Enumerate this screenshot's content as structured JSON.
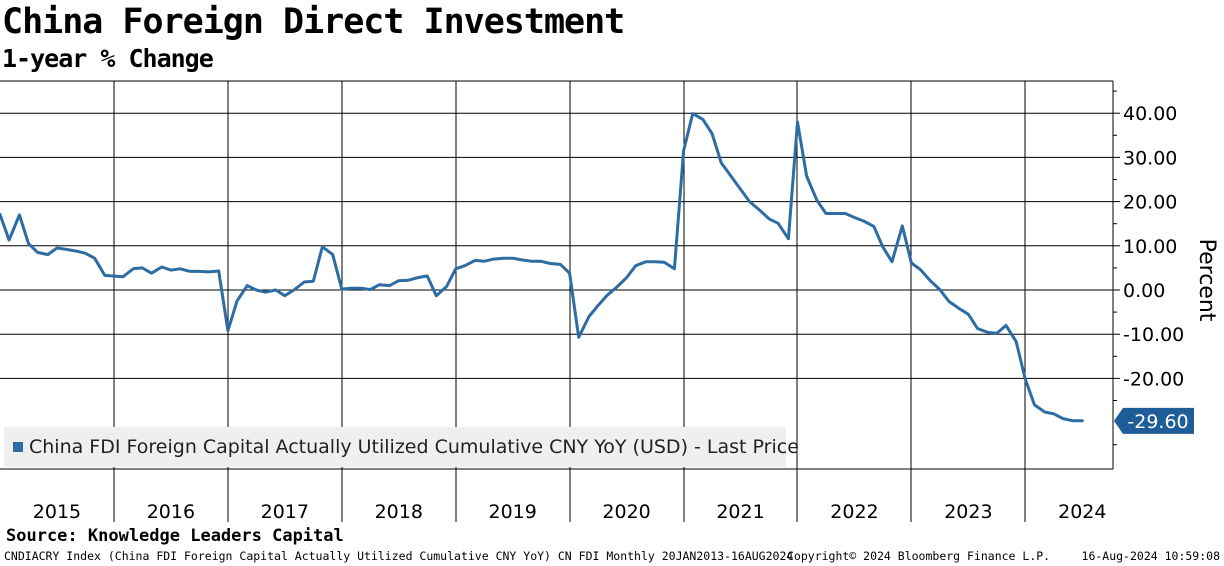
{
  "header": {
    "title": "China Foreign Direct Investment",
    "subtitle": "1-year % Change"
  },
  "footer": {
    "source": "Source: Knowledge Leaders Capital",
    "ticker_info": "CNDIACRY Index (China FDI Foreign Capital Actually Utilized Cumulative CNY YoY) CN FDI  Monthly 20JAN2013-16AUG2024",
    "copyright": "Copyright© 2024 Bloomberg Finance L.P.",
    "timestamp": "16-Aug-2024 10:59:08"
  },
  "colors": {
    "line": "#2e6ca4",
    "grid": "#000000",
    "badge_bg": "#1f5d99",
    "badge_text": "#ffffff"
  },
  "chart_data": {
    "type": "line",
    "title": "China Foreign Direct Investment",
    "subtitle": "1-year % Change",
    "ylabel": "Percent",
    "xlabel": "",
    "ylim": [
      -40,
      50
    ],
    "yticks": [
      40,
      30,
      20,
      10,
      0,
      -10,
      -20
    ],
    "ytick_labels": [
      "40.00",
      "30.00",
      "20.00",
      "10.00",
      "0.00",
      "-10.00",
      "-20.00"
    ],
    "year_labels": [
      "2015",
      "2016",
      "2017",
      "2018",
      "2019",
      "2020",
      "2021",
      "2022",
      "2023",
      "2024"
    ],
    "year_centers": [
      2015.5,
      2016.5,
      2017.5,
      2018.5,
      2019.5,
      2020.5,
      2021.5,
      2022.5,
      2023.5,
      2024.5
    ],
    "year_boundaries": [
      2016,
      2017,
      2018,
      2019,
      2020,
      2021,
      2022,
      2023,
      2024
    ],
    "x_range": [
      2015.0,
      2024.55
    ],
    "grid": true,
    "legend_position": "bottom-left",
    "last_value": -29.6,
    "last_value_label": "-29.60",
    "series": [
      {
        "name": "China FDI Foreign Capital Actually Utilized Cumulative CNY YoY (USD) - Last Price",
        "x": [
          2015.0,
          2015.08,
          2015.17,
          2015.25,
          2015.33,
          2015.42,
          2015.5,
          2015.58,
          2015.67,
          2015.75,
          2015.83,
          2015.92,
          2016.08,
          2016.17,
          2016.25,
          2016.33,
          2016.42,
          2016.5,
          2016.58,
          2016.67,
          2016.75,
          2016.83,
          2016.92,
          2017.0,
          2017.08,
          2017.17,
          2017.25,
          2017.33,
          2017.42,
          2017.5,
          2017.58,
          2017.67,
          2017.75,
          2017.83,
          2017.92,
          2018.0,
          2018.08,
          2018.17,
          2018.25,
          2018.33,
          2018.42,
          2018.5,
          2018.58,
          2018.67,
          2018.75,
          2018.83,
          2018.92,
          2019.0,
          2019.08,
          2019.17,
          2019.25,
          2019.33,
          2019.42,
          2019.5,
          2019.58,
          2019.67,
          2019.75,
          2019.83,
          2019.92,
          2020.0,
          2020.08,
          2020.17,
          2020.25,
          2020.33,
          2020.42,
          2020.5,
          2020.58,
          2020.67,
          2020.75,
          2020.83,
          2020.92,
          2021.0,
          2021.08,
          2021.17,
          2021.25,
          2021.33,
          2021.42,
          2021.5,
          2021.58,
          2021.67,
          2021.75,
          2021.83,
          2021.92,
          2022.0,
          2022.08,
          2022.17,
          2022.25,
          2022.33,
          2022.42,
          2022.5,
          2022.58,
          2022.67,
          2022.75,
          2022.83,
          2022.92,
          2023.0,
          2023.08,
          2023.17,
          2023.25,
          2023.33,
          2023.42,
          2023.5,
          2023.58,
          2023.67,
          2023.75,
          2023.83,
          2023.92,
          2024.0,
          2024.08,
          2024.17,
          2024.25,
          2024.33,
          2024.42,
          2024.5
        ],
        "values": [
          17.1,
          11.3,
          17.0,
          10.5,
          8.5,
          8.0,
          9.5,
          9.2,
          8.8,
          8.3,
          7.2,
          3.3,
          3.0,
          4.8,
          5.0,
          3.8,
          5.2,
          4.5,
          4.8,
          4.2,
          4.2,
          4.1,
          4.3,
          -9.2,
          -2.5,
          1.0,
          0.0,
          -0.5,
          0.0,
          -1.3,
          0.0,
          1.8,
          2.0,
          9.8,
          8.0,
          0.2,
          0.4,
          0.4,
          0.1,
          1.2,
          1.0,
          2.1,
          2.2,
          2.8,
          3.2,
          -1.3,
          0.8,
          4.8,
          5.5,
          6.7,
          6.5,
          7.0,
          7.2,
          7.2,
          6.8,
          6.5,
          6.5,
          6.0,
          5.8,
          3.8,
          -10.7,
          -6.0,
          -3.5,
          -1.2,
          0.8,
          2.8,
          5.5,
          6.4,
          6.4,
          6.3,
          4.8,
          31.5,
          39.9,
          38.6,
          35.4,
          28.8,
          25.6,
          22.8,
          20.0,
          18.0,
          16.1,
          15.1,
          11.6,
          38.0,
          25.8,
          20.3,
          17.3,
          17.3,
          17.3,
          16.4,
          15.6,
          14.4,
          9.7,
          6.4,
          14.5,
          6.1,
          4.6,
          2.0,
          0.1,
          -2.6,
          -4.2,
          -5.5,
          -8.7,
          -9.6,
          -9.8,
          -8.0,
          -11.7,
          -20.2,
          -26.0,
          -27.6,
          -28.0,
          -29.1,
          -29.6,
          -29.6
        ]
      }
    ]
  }
}
